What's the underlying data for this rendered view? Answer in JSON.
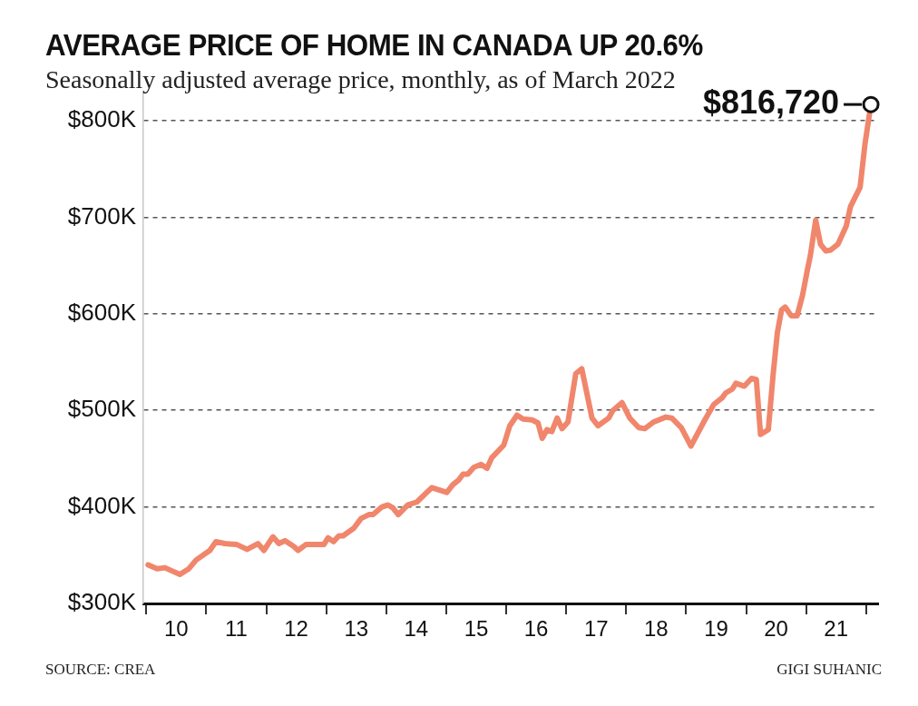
{
  "chart_data": {
    "type": "line",
    "title": "AVERAGE PRICE OF HOME IN CANADA UP 20.6%",
    "subtitle": "Seasonally adjusted average price, monthly, as of March 2022",
    "x": [
      9.53,
      9.68,
      9.81,
      10.06,
      10.21,
      10.33,
      10.56,
      10.66,
      10.81,
      11.01,
      11.18,
      11.36,
      11.46,
      11.61,
      11.71,
      11.81,
      11.96,
      12.03,
      12.16,
      12.46,
      12.53,
      12.62,
      12.71,
      12.78,
      12.96,
      13.08,
      13.21,
      13.28,
      13.43,
      13.53,
      13.61,
      13.7,
      13.86,
      14.01,
      14.16,
      14.26,
      14.51,
      14.61,
      14.71,
      14.78,
      14.86,
      14.96,
      15.08,
      15.18,
      15.26,
      15.46,
      15.56,
      15.68,
      15.78,
      15.93,
      16.03,
      16.1,
      16.18,
      16.26,
      16.35,
      16.43,
      16.53,
      16.66,
      16.76,
      16.93,
      17.03,
      17.21,
      17.28,
      17.43,
      17.56,
      17.71,
      17.81,
      17.96,
      18.16,
      18.26,
      18.42,
      18.58,
      18.82,
      18.96,
      19.1,
      19.16,
      19.27,
      19.33,
      19.47,
      19.59,
      19.67,
      19.74,
      19.87,
      19.95,
      20.02,
      20.09,
      20.15,
      20.25,
      20.35,
      20.44,
      20.52,
      20.57,
      20.66,
      20.74,
      20.83,
      20.91,
      21.03,
      21.17,
      21.24,
      21.4,
      21.48,
      21.58
    ],
    "series": [
      {
        "color": "#f0866c",
        "values": [
          340,
          336,
          337,
          330,
          336,
          345,
          355,
          364,
          362,
          361,
          356,
          362,
          355,
          369,
          362,
          365,
          359,
          355,
          361,
          361,
          368,
          364,
          370,
          370,
          378,
          388,
          392,
          392,
          400,
          402,
          399,
          392,
          402,
          405,
          414,
          420,
          415,
          423,
          428,
          434,
          434,
          441,
          444,
          440,
          451,
          464,
          484,
          495,
          491,
          490,
          487,
          471,
          480,
          478,
          492,
          481,
          488,
          538,
          543,
          492,
          484,
          492,
          500,
          508,
          492,
          482,
          481,
          488,
          493,
          492,
          482,
          463,
          491,
          506,
          513,
          518,
          522,
          528,
          525,
          533,
          532,
          475,
          480,
          537,
          580,
          604,
          607,
          598,
          598,
          619,
          645,
          660,
          697,
          672,
          665,
          666,
          672,
          691,
          711,
          731,
          775,
          816.72
        ]
      }
    ],
    "xlim": [
      9.45,
      21.7
    ],
    "xticks": [
      {
        "value": 9.5,
        "label": null
      },
      10,
      {
        "value": 10.5,
        "label": null
      },
      11,
      {
        "value": 11.5,
        "label": null
      },
      12,
      {
        "value": 12.5,
        "label": null
      },
      13,
      {
        "value": 13.5,
        "label": null
      },
      14,
      {
        "value": 14.5,
        "label": null
      },
      15,
      {
        "value": 15.5,
        "label": null
      },
      16,
      {
        "value": 16.5,
        "label": null
      },
      17,
      {
        "value": 17.5,
        "label": null
      },
      18,
      {
        "value": 18.5,
        "label": null
      },
      19,
      {
        "value": 19.5,
        "label": null
      },
      20,
      {
        "value": 20.5,
        "label": null
      },
      21,
      {
        "value": 21.5,
        "label": null
      }
    ],
    "ylim": [
      300,
      830
    ],
    "yticks": [
      {
        "value": 300,
        "label": "$300K"
      },
      {
        "value": 400,
        "label": "$400K"
      },
      {
        "value": 500,
        "label": "$500K"
      },
      {
        "value": 600,
        "label": "$600K"
      },
      {
        "value": 700,
        "label": "$700K"
      },
      {
        "value": 800,
        "label": "$800K"
      }
    ],
    "grid": "y",
    "legend": false,
    "marker": "none",
    "line_style": "solid",
    "annotations": [
      {
        "text": "$816,720",
        "x": 21.58,
        "y": 816.72
      },
      "SOURCE: CREA",
      "GIGI SUHANIC"
    ]
  }
}
